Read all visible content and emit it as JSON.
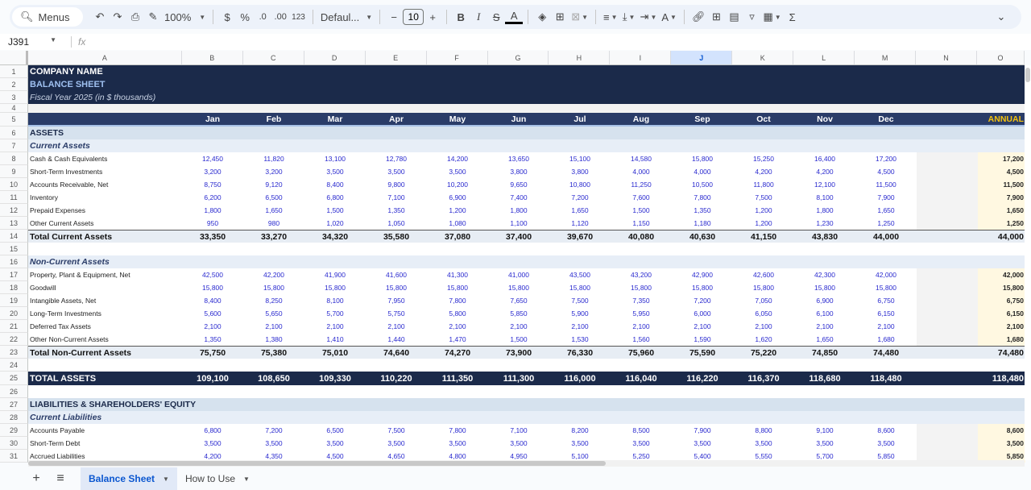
{
  "toolbar": {
    "menus_label": "Menus",
    "zoom": "100%",
    "currency": "$",
    "percent": "%",
    "dec_less": ".0",
    "dec_more": ".00",
    "format_123": "123",
    "font": "Defaul...",
    "font_size": "10",
    "minus": "−",
    "plus": "+",
    "bold": "B",
    "italic": "I",
    "sum": "Σ"
  },
  "formula_bar": {
    "cell_ref": "J391",
    "fx": "fx",
    "value": ""
  },
  "columns": [
    "A",
    "B",
    "C",
    "D",
    "E",
    "F",
    "G",
    "H",
    "I",
    "J",
    "K",
    "L",
    "M",
    "N",
    "O"
  ],
  "selected_column": "J",
  "sheet": {
    "company": "COMPANY NAME",
    "title": "BALANCE SHEET",
    "fiscal_year": "Fiscal Year 2025 (in $ thousands)",
    "months": [
      "Jan",
      "Feb",
      "Mar",
      "Apr",
      "May",
      "Jun",
      "Jul",
      "Aug",
      "Sep",
      "Oct",
      "Nov",
      "Dec"
    ],
    "annual_label": "ANNUAL",
    "assets_label": "ASSETS",
    "current_assets_label": "Current Assets",
    "current_assets": [
      {
        "label": "Cash & Cash Equivalents",
        "values": [
          "12,450",
          "11,820",
          "13,100",
          "12,780",
          "14,200",
          "13,650",
          "15,100",
          "14,580",
          "15,800",
          "15,250",
          "16,400",
          "17,200"
        ],
        "annual": "17,200"
      },
      {
        "label": "Short-Term Investments",
        "values": [
          "3,200",
          "3,200",
          "3,500",
          "3,500",
          "3,500",
          "3,800",
          "3,800",
          "4,000",
          "4,000",
          "4,200",
          "4,200",
          "4,500"
        ],
        "annual": "4,500"
      },
      {
        "label": "Accounts Receivable, Net",
        "values": [
          "8,750",
          "9,120",
          "8,400",
          "9,800",
          "10,200",
          "9,650",
          "10,800",
          "11,250",
          "10,500",
          "11,800",
          "12,100",
          "11,500"
        ],
        "annual": "11,500"
      },
      {
        "label": "Inventory",
        "values": [
          "6,200",
          "6,500",
          "6,800",
          "7,100",
          "6,900",
          "7,400",
          "7,200",
          "7,600",
          "7,800",
          "7,500",
          "8,100",
          "7,900"
        ],
        "annual": "7,900"
      },
      {
        "label": "Prepaid Expenses",
        "values": [
          "1,800",
          "1,650",
          "1,500",
          "1,350",
          "1,200",
          "1,800",
          "1,650",
          "1,500",
          "1,350",
          "1,200",
          "1,800",
          "1,650"
        ],
        "annual": "1,650"
      },
      {
        "label": "Other Current Assets",
        "values": [
          "950",
          "980",
          "1,020",
          "1,050",
          "1,080",
          "1,100",
          "1,120",
          "1,150",
          "1,180",
          "1,200",
          "1,230",
          "1,250"
        ],
        "annual": "1,250"
      }
    ],
    "total_current_assets": {
      "label": "Total Current Assets",
      "values": [
        "33,350",
        "33,270",
        "34,320",
        "35,580",
        "37,080",
        "37,400",
        "39,670",
        "40,080",
        "40,630",
        "41,150",
        "43,830",
        "44,000"
      ],
      "annual": "44,000"
    },
    "non_current_assets_label": "Non-Current Assets",
    "non_current_assets": [
      {
        "label": "Property, Plant & Equipment, Net",
        "values": [
          "42,500",
          "42,200",
          "41,900",
          "41,600",
          "41,300",
          "41,000",
          "43,500",
          "43,200",
          "42,900",
          "42,600",
          "42,300",
          "42,000"
        ],
        "annual": "42,000"
      },
      {
        "label": "Goodwill",
        "values": [
          "15,800",
          "15,800",
          "15,800",
          "15,800",
          "15,800",
          "15,800",
          "15,800",
          "15,800",
          "15,800",
          "15,800",
          "15,800",
          "15,800"
        ],
        "annual": "15,800"
      },
      {
        "label": "Intangible Assets, Net",
        "values": [
          "8,400",
          "8,250",
          "8,100",
          "7,950",
          "7,800",
          "7,650",
          "7,500",
          "7,350",
          "7,200",
          "7,050",
          "6,900",
          "6,750"
        ],
        "annual": "6,750"
      },
      {
        "label": "Long-Term Investments",
        "values": [
          "5,600",
          "5,650",
          "5,700",
          "5,750",
          "5,800",
          "5,850",
          "5,900",
          "5,950",
          "6,000",
          "6,050",
          "6,100",
          "6,150"
        ],
        "annual": "6,150"
      },
      {
        "label": "Deferred Tax Assets",
        "values": [
          "2,100",
          "2,100",
          "2,100",
          "2,100",
          "2,100",
          "2,100",
          "2,100",
          "2,100",
          "2,100",
          "2,100",
          "2,100",
          "2,100"
        ],
        "annual": "2,100"
      },
      {
        "label": "Other Non-Current Assets",
        "values": [
          "1,350",
          "1,380",
          "1,410",
          "1,440",
          "1,470",
          "1,500",
          "1,530",
          "1,560",
          "1,590",
          "1,620",
          "1,650",
          "1,680"
        ],
        "annual": "1,680"
      }
    ],
    "total_non_current_assets": {
      "label": "Total Non-Current Assets",
      "values": [
        "75,750",
        "75,380",
        "75,010",
        "74,640",
        "74,270",
        "73,900",
        "76,330",
        "75,960",
        "75,590",
        "75,220",
        "74,850",
        "74,480"
      ],
      "annual": "74,480"
    },
    "total_assets": {
      "label": "TOTAL ASSETS",
      "values": [
        "109,100",
        "108,650",
        "109,330",
        "110,220",
        "111,350",
        "111,300",
        "116,000",
        "116,040",
        "116,220",
        "116,370",
        "118,680",
        "118,480"
      ],
      "annual": "118,480"
    },
    "liabilities_label": "LIABILITIES & SHAREHOLDERS' EQUITY",
    "current_liabilities_label": "Current Liabilities",
    "current_liabilities": [
      {
        "label": "Accounts Payable",
        "values": [
          "6,800",
          "7,200",
          "6,500",
          "7,500",
          "7,800",
          "7,100",
          "8,200",
          "8,500",
          "7,900",
          "8,800",
          "9,100",
          "8,600"
        ],
        "annual": "8,600"
      },
      {
        "label": "Short-Term Debt",
        "values": [
          "3,500",
          "3,500",
          "3,500",
          "3,500",
          "3,500",
          "3,500",
          "3,500",
          "3,500",
          "3,500",
          "3,500",
          "3,500",
          "3,500"
        ],
        "annual": "3,500"
      },
      {
        "label": "Accrued Liabilities",
        "values": [
          "4,200",
          "4,350",
          "4,500",
          "4,650",
          "4,800",
          "4,950",
          "5,100",
          "5,250",
          "5,400",
          "5,550",
          "5,700",
          "5,850"
        ],
        "annual": "5,850"
      }
    ]
  },
  "tabs": [
    {
      "label": "Balance Sheet",
      "active": true
    },
    {
      "label": "How to Use",
      "active": false
    }
  ]
}
